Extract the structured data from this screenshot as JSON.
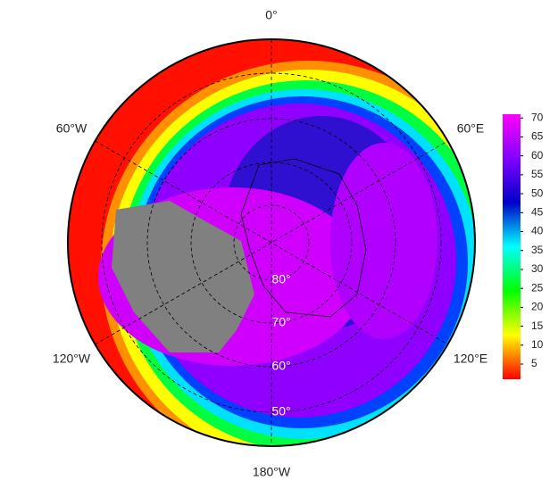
{
  "map": {
    "longitude_labels": [
      "0°",
      "60°E",
      "120°E",
      "180°W",
      "120°W",
      "60°W"
    ],
    "latitude_labels": [
      "80°",
      "70°",
      "60°",
      "50°"
    ]
  },
  "colorbar": {
    "lim": [
      1,
      71
    ],
    "ticks": [
      5,
      10,
      15,
      20,
      25,
      30,
      35,
      40,
      45,
      50,
      55,
      60,
      65,
      70
    ],
    "colormap": [
      "#ff0000",
      "#ffff00",
      "#00ff00",
      "#00ffff",
      "#0000c8",
      "#8000ff",
      "#ff00ff"
    ]
  }
}
